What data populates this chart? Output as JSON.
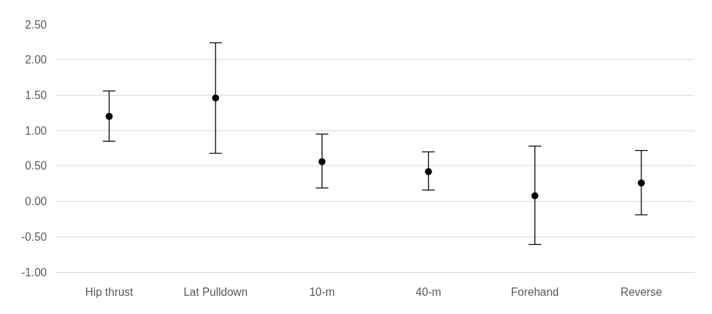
{
  "chart_data": {
    "type": "scatter",
    "categories": [
      "Hip thrust",
      "Lat Pulldown",
      "10-m",
      "40-m",
      "Forehand",
      "Reverse"
    ],
    "values": [
      1.2,
      1.46,
      0.56,
      0.42,
      0.08,
      0.26
    ],
    "errors": [
      [
        0.85,
        1.56
      ],
      [
        0.68,
        2.24
      ],
      [
        0.19,
        0.95
      ],
      [
        0.16,
        0.7
      ],
      [
        -0.61,
        0.78
      ],
      [
        -0.19,
        0.72
      ]
    ],
    "color": "#000000",
    "marker": "circle",
    "ylim": [
      -1.0,
      2.5
    ],
    "yticks": [
      {
        "value": -1.0,
        "label": "-1.00"
      },
      {
        "value": -0.5,
        "label": "-0.50"
      },
      {
        "value": 0,
        "label": "0.00"
      },
      {
        "value": 0.5,
        "label": "0.50"
      },
      {
        "value": 1.0,
        "label": "1.00"
      },
      {
        "value": 1.5,
        "label": "1.50"
      },
      {
        "value": 2.0,
        "label": "2.00"
      },
      {
        "value": 2.5,
        "label": "2.50"
      }
    ],
    "grid": "y"
  }
}
